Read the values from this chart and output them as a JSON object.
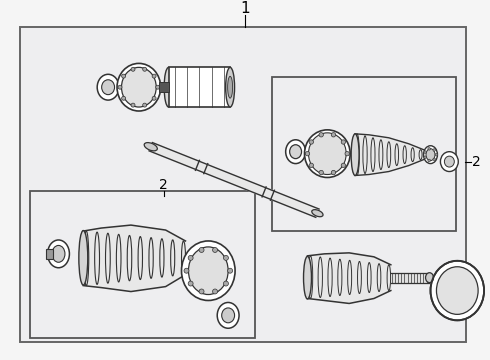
{
  "bg_color": "#eeeef0",
  "outer_box_color": "#666666",
  "inner_box_color": "#555555",
  "line_color": "#333333",
  "fill_color": "#ffffff",
  "label_1": "1",
  "label_2": "2",
  "title_fontsize": 11,
  "label_fontsize": 10
}
